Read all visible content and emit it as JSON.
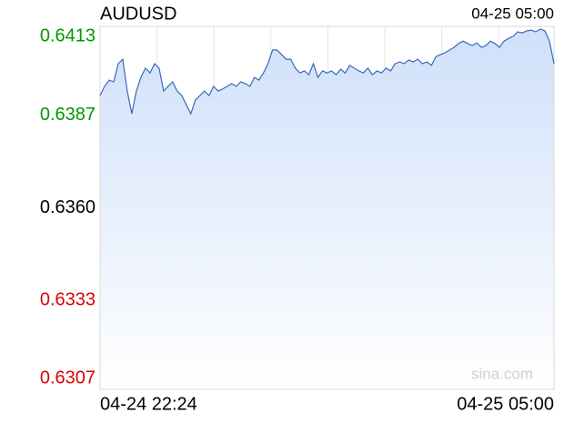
{
  "chart_data": {
    "type": "area-line",
    "title": "AUDUSD",
    "header_time": "04-25 05:00",
    "watermark": "sina.com",
    "color": "#3b68b9",
    "ylim": [
      0.6307,
      0.6413
    ],
    "yticks": [
      0.6413,
      0.6387,
      0.636,
      0.6333,
      0.6307
    ],
    "ytick_labels": [
      "0.6413",
      "0.6387",
      "0.6360",
      "0.6333",
      "0.6307"
    ],
    "ytick_colors": [
      "#009900",
      "#009900",
      "#000000",
      "#dd0000",
      "#dd0000"
    ],
    "grid": true,
    "categories": [
      "04-24 22:24",
      null,
      null,
      null,
      null,
      null,
      null,
      null,
      null,
      null,
      null,
      null,
      null,
      null,
      null,
      null,
      null,
      null,
      null,
      null,
      null,
      null,
      null,
      null,
      null,
      null,
      null,
      null,
      null,
      null,
      null,
      null,
      null,
      null,
      null,
      null,
      null,
      null,
      null,
      null,
      null,
      null,
      null,
      null,
      null,
      null,
      null,
      null,
      null,
      null,
      null,
      null,
      null,
      null,
      null,
      null,
      null,
      null,
      null,
      null,
      null,
      null,
      null,
      null,
      null,
      null,
      null,
      null,
      null,
      null,
      null,
      null,
      null,
      null,
      null,
      null,
      null,
      null,
      null,
      null,
      null,
      null,
      null,
      null,
      null,
      null,
      null,
      null,
      null,
      null,
      null,
      null,
      null,
      null,
      null,
      null,
      null,
      null,
      null,
      null,
      "04-25 05:00"
    ],
    "values": [
      0.63928,
      0.63955,
      0.63973,
      0.63968,
      0.64021,
      0.64034,
      0.63941,
      0.63875,
      0.63941,
      0.63981,
      0.64008,
      0.63994,
      0.64021,
      0.64008,
      0.63941,
      0.63955,
      0.63968,
      0.63941,
      0.63928,
      0.63901,
      0.63875,
      0.63915,
      0.63928,
      0.63941,
      0.63928,
      0.63955,
      0.63941,
      0.63947,
      0.63955,
      0.63963,
      0.63955,
      0.63968,
      0.63963,
      0.63955,
      0.63981,
      0.63973,
      0.63994,
      0.64021,
      0.64061,
      0.64061,
      0.64048,
      0.64034,
      0.64034,
      0.64008,
      0.63994,
      0.64,
      0.63989,
      0.64021,
      0.63981,
      0.64,
      0.63994,
      0.64,
      0.63989,
      0.64005,
      0.63994,
      0.64016,
      0.64008,
      0.64,
      0.63994,
      0.64008,
      0.63989,
      0.64,
      0.63994,
      0.64008,
      0.64,
      0.64021,
      0.64026,
      0.64021,
      0.64032,
      0.64026,
      0.64034,
      0.64021,
      0.64026,
      0.64016,
      0.64042,
      0.64048,
      0.64053,
      0.64061,
      0.64069,
      0.6408,
      0.64087,
      0.6408,
      0.64074,
      0.64082,
      0.64069,
      0.64074,
      0.64087,
      0.6408,
      0.64069,
      0.64087,
      0.64095,
      0.64101,
      0.64114,
      0.64111,
      0.64117,
      0.64119,
      0.64114,
      0.64122,
      0.64117,
      0.64087,
      0.64021
    ]
  }
}
